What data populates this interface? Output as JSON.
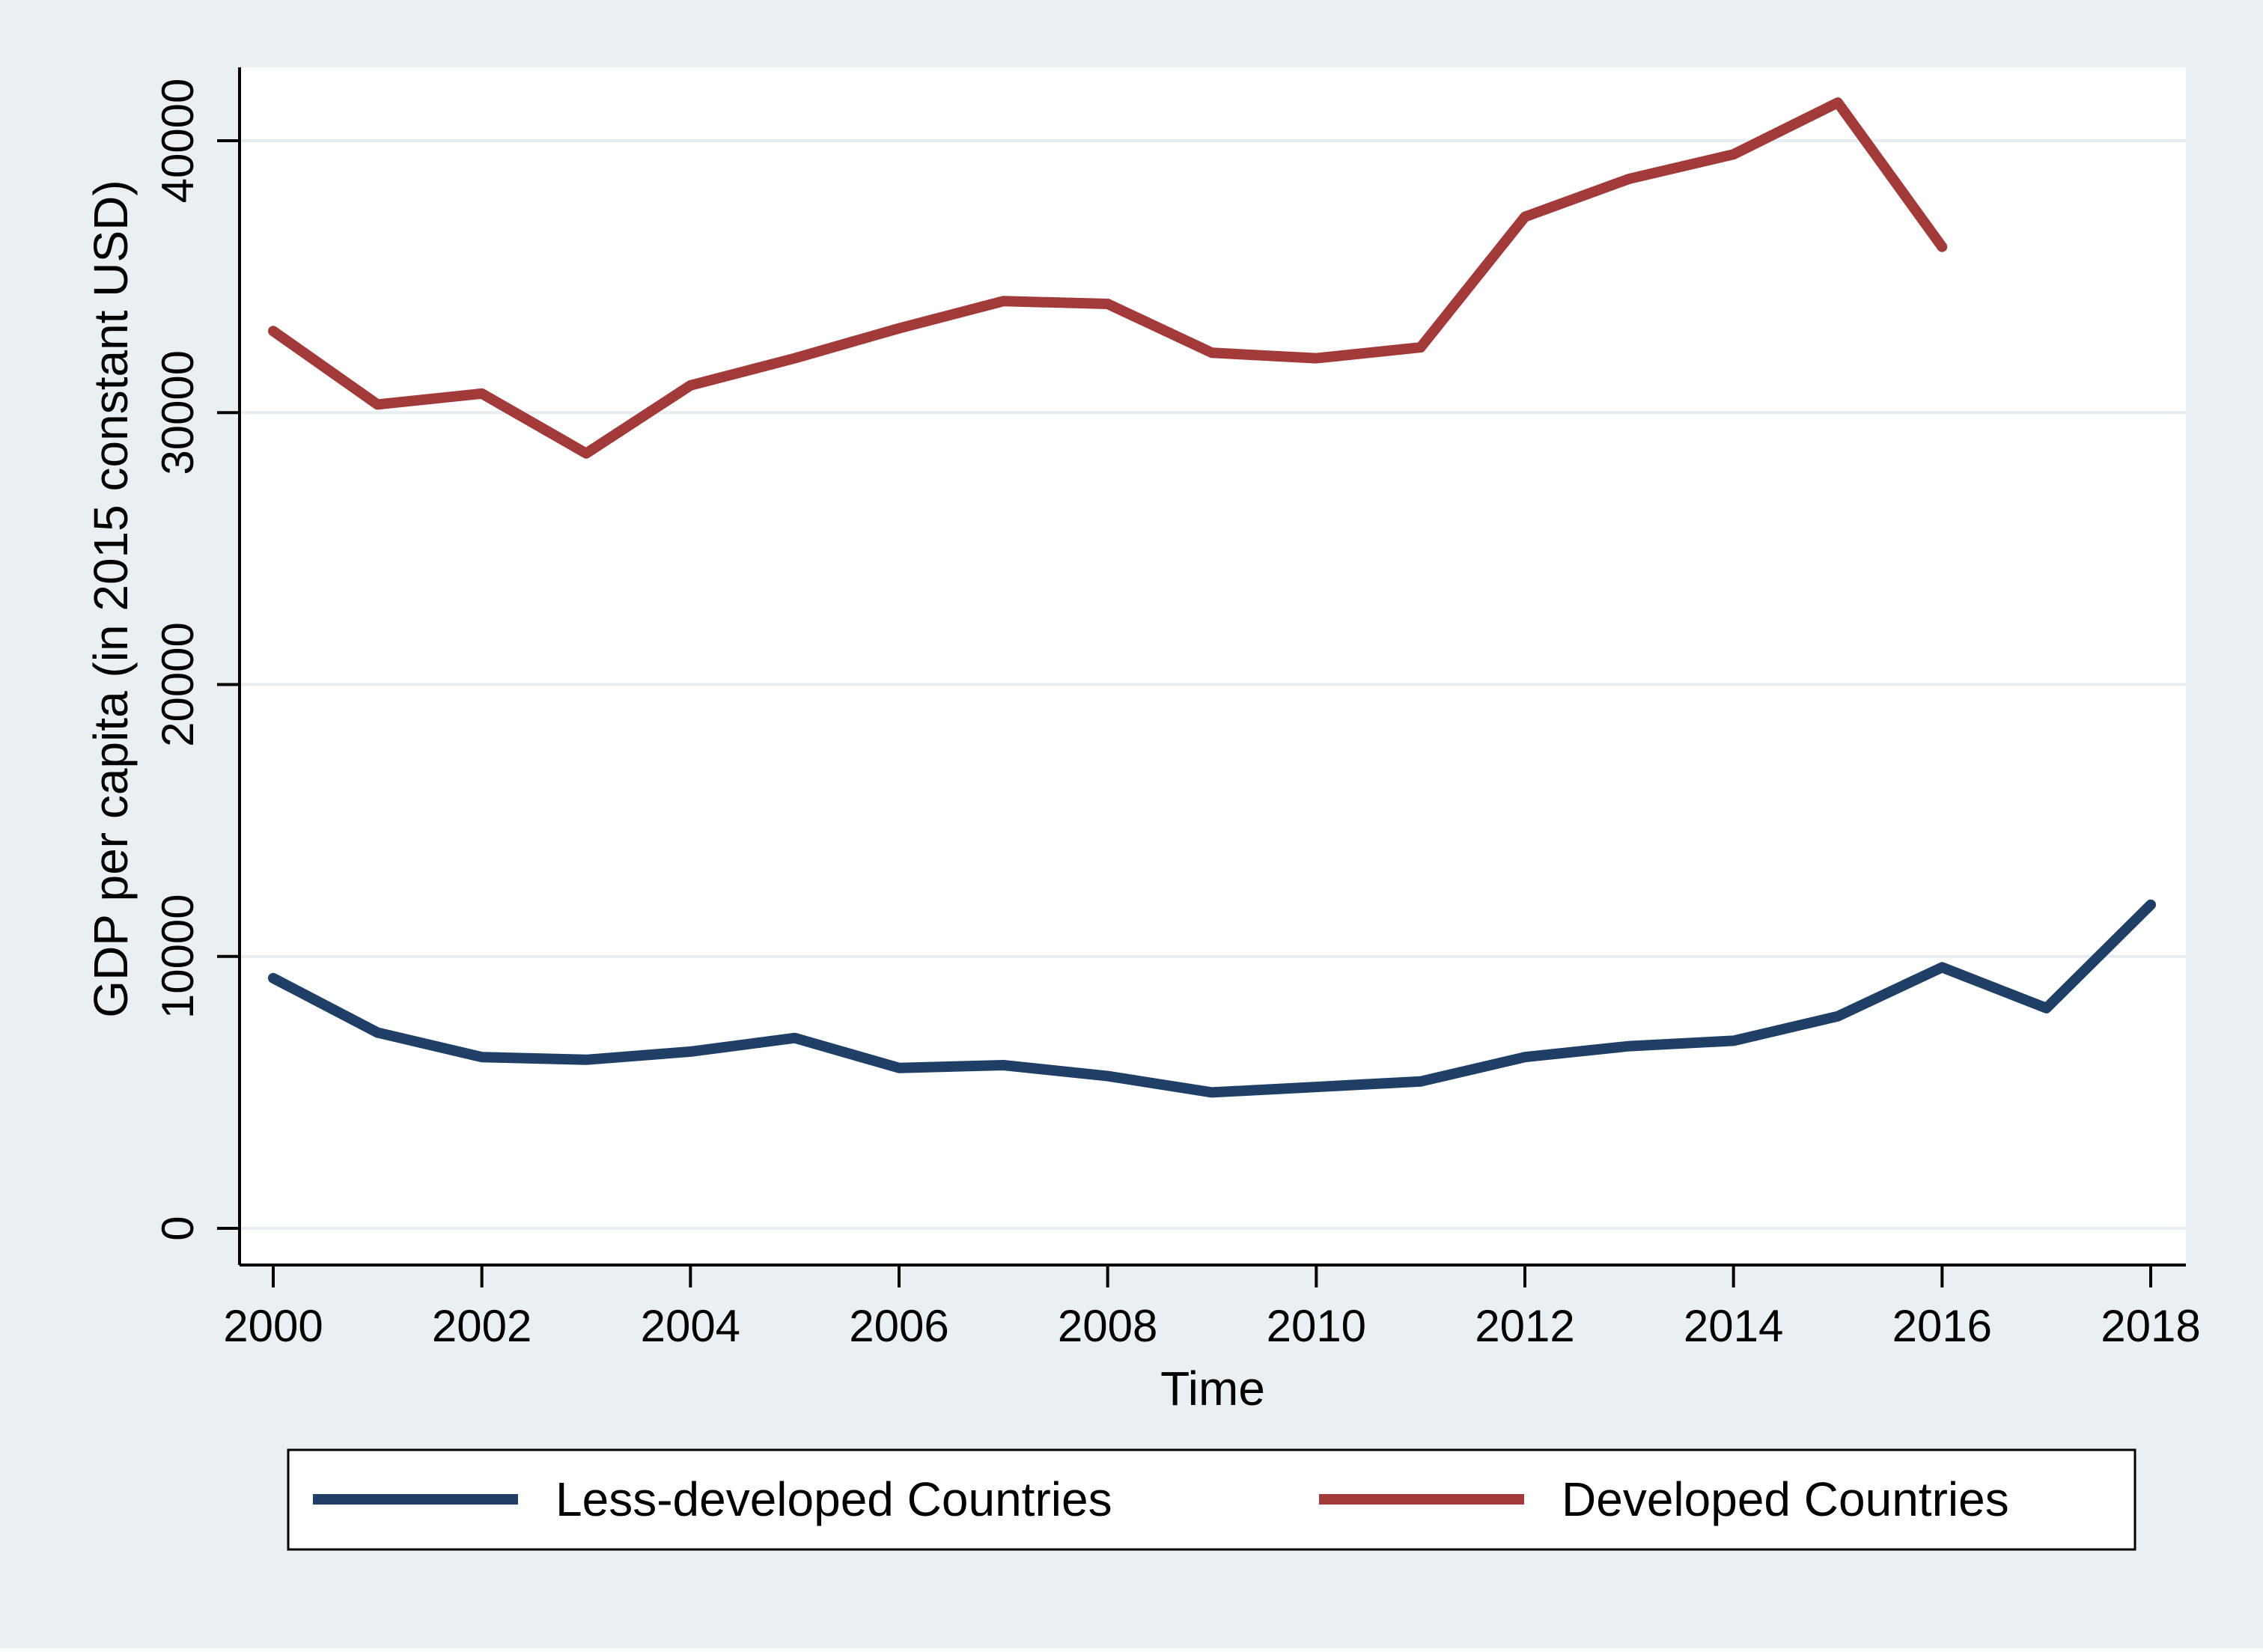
{
  "chart_data": {
    "type": "line",
    "title": "",
    "xlabel": "Time",
    "ylabel": "GDP per capita (in 2015 constant USD)",
    "xlim": [
      2000,
      2018
    ],
    "ylim": [
      0,
      42000
    ],
    "x_ticks": [
      "2000",
      "2002",
      "2004",
      "2006",
      "2008",
      "2010",
      "2012",
      "2014",
      "2016",
      "2018"
    ],
    "y_ticks": [
      "0",
      "10000",
      "20000",
      "30000",
      "40000"
    ],
    "grid": true,
    "legend_position": "bottom",
    "series": [
      {
        "name": "Less-developed Countries",
        "color": "#1f3f66",
        "x": [
          2000,
          2001,
          2002,
          2003,
          2004,
          2005,
          2006,
          2007,
          2008,
          2009,
          2010,
          2011,
          2012,
          2013,
          2014,
          2015,
          2016,
          2017,
          2018
        ],
        "values": [
          9200,
          7200,
          6300,
          6200,
          6500,
          7000,
          5900,
          6000,
          5600,
          5000,
          5200,
          5400,
          6300,
          6700,
          6900,
          7800,
          9600,
          8100,
          11900
        ]
      },
      {
        "name": "Developed Countries",
        "color": "#a33a3a",
        "x": [
          2000,
          2001,
          2002,
          2003,
          2004,
          2005,
          2006,
          2007,
          2008,
          2009,
          2010,
          2011,
          2012,
          2013,
          2014,
          2015,
          2016
        ],
        "values": [
          33000,
          30300,
          30700,
          28500,
          31000,
          32000,
          33100,
          34100,
          34000,
          32200,
          32000,
          32400,
          37200,
          38600,
          39500,
          41400,
          36100
        ]
      }
    ]
  }
}
